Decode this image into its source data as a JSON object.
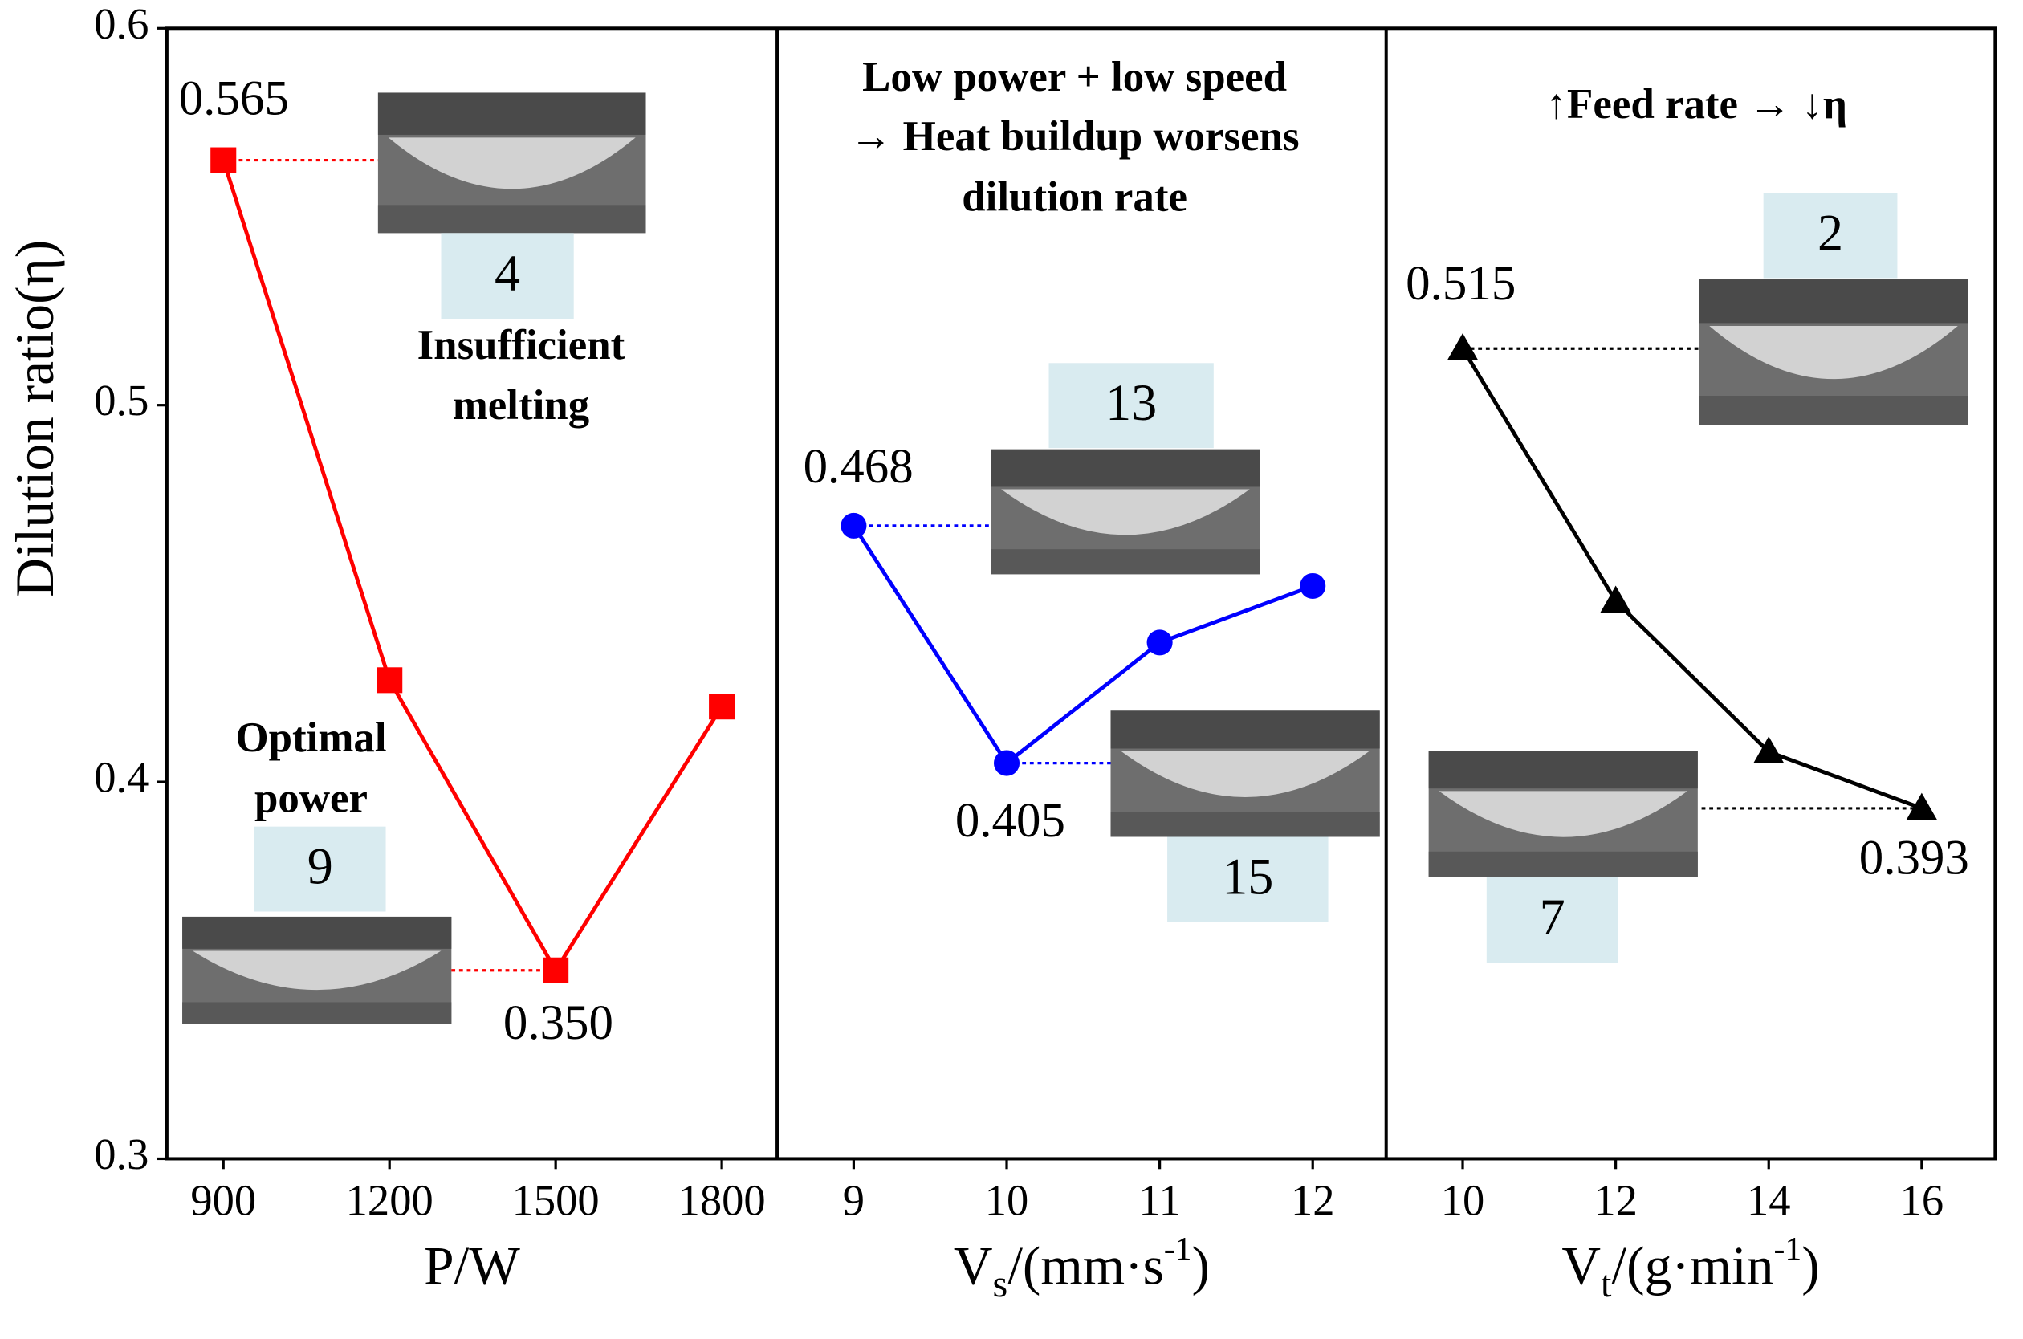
{
  "chart_data": [
    {
      "type": "line",
      "ylabel": "Dilution ratio(η)",
      "xlabel": {
        "text": "P/W"
      },
      "x": [
        900,
        1200,
        1500,
        1800
      ],
      "xlim": [
        798,
        1900
      ],
      "xticks": [
        900,
        1200,
        1500,
        1800
      ],
      "ylim": [
        0.3,
        0.6
      ],
      "yticks": [
        0.3,
        0.4,
        0.5,
        0.6
      ],
      "series": [
        {
          "name": "P",
          "color": "#ff0000",
          "marker": "square",
          "values": [
            0.565,
            0.427,
            0.35,
            0.42
          ],
          "value_labels": [
            "0.565",
            null,
            "0.350",
            null
          ]
        }
      ],
      "annotations": [
        "4",
        "Insufficient",
        "melting",
        "Optimal",
        "power",
        "9"
      ]
    },
    {
      "type": "line",
      "title_lines": [
        "Low power + low speed",
        "→ Heat buildup worsens",
        "dilution rate"
      ],
      "xlabel": {
        "text": "V",
        "sub": "s",
        "rest": "/(mm·s",
        "sup": "-1",
        "end": ")"
      },
      "x": [
        9,
        10,
        11,
        12
      ],
      "xlim": [
        8.5,
        12.48
      ],
      "xticks": [
        9,
        10,
        11,
        12
      ],
      "ylim": [
        0.3,
        0.6
      ],
      "series": [
        {
          "name": "Vs",
          "color": "#0000ff",
          "marker": "circle",
          "values": [
            0.468,
            0.405,
            0.437,
            0.452
          ],
          "value_labels": [
            "0.468",
            "0.405",
            null,
            null
          ]
        }
      ],
      "annotations": [
        "13",
        "15"
      ]
    },
    {
      "type": "line",
      "title_lines": [
        "↑Feed rate → ↓η"
      ],
      "xlabel": {
        "text": "V",
        "sub": "t",
        "rest": "/(g·min",
        "sup": "-1",
        "end": ")"
      },
      "x": [
        10,
        12,
        14,
        16
      ],
      "xlim": [
        9,
        16.96
      ],
      "xticks": [
        10,
        12,
        14,
        16
      ],
      "ylim": [
        0.3,
        0.6
      ],
      "series": [
        {
          "name": "Vt",
          "color": "#000000",
          "marker": "triangle",
          "values": [
            0.515,
            0.448,
            0.408,
            0.393
          ],
          "value_labels": [
            "0.515",
            null,
            null,
            "0.393"
          ]
        }
      ],
      "annotations": [
        "2",
        "7"
      ]
    }
  ]
}
